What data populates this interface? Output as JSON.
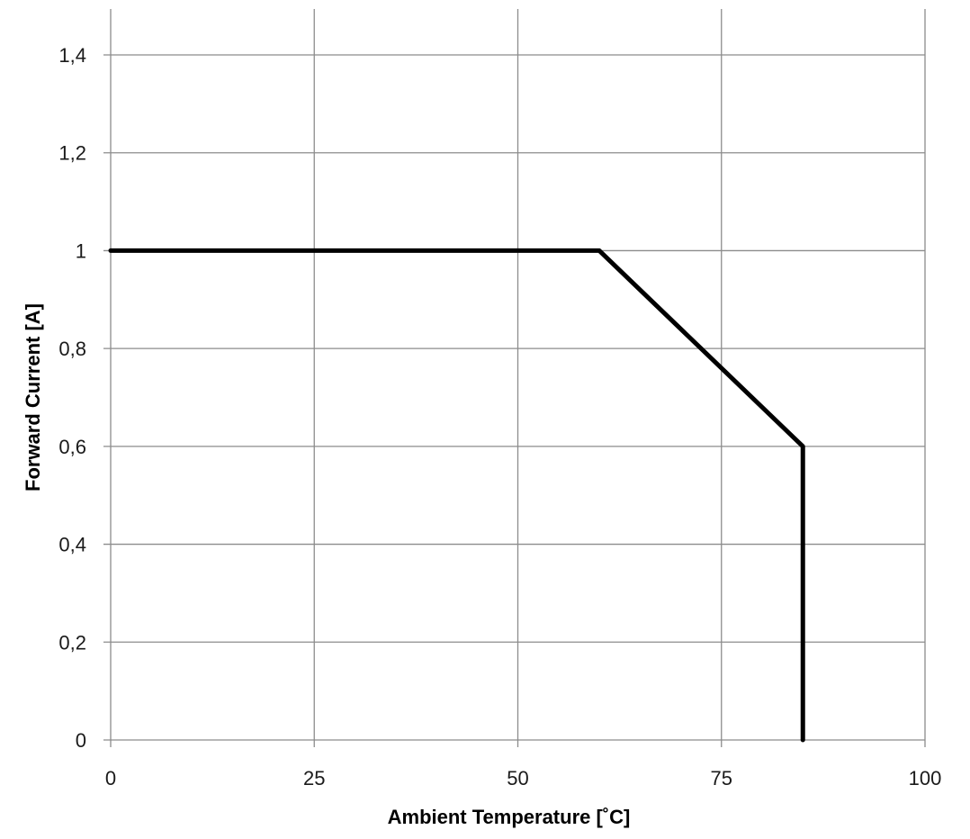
{
  "chart_data": {
    "type": "line",
    "title": "",
    "xlabel": "Ambient Temperature [˚C]",
    "ylabel": "Forward Current [A]",
    "xlim": [
      0,
      100
    ],
    "ylim": [
      0,
      1.5
    ],
    "x_ticks": [
      0,
      25,
      50,
      75,
      100
    ],
    "x_tick_labels": [
      "0",
      "25",
      "50",
      "75",
      "100"
    ],
    "y_ticks": [
      0,
      0.2,
      0.4,
      0.6,
      0.8,
      1.0,
      1.2,
      1.4
    ],
    "y_tick_labels": [
      "0",
      "0,2",
      "0,4",
      "0,6",
      "0,8",
      "1",
      "1,2",
      "1,4"
    ],
    "grid": true,
    "legend": "none",
    "series": [
      {
        "x": [
          0,
          60,
          85,
          85
        ],
        "y": [
          1.0,
          1.0,
          0.6,
          0.0
        ],
        "color": "#000000"
      }
    ],
    "colors": {
      "grid": "#8c8c8c",
      "line": "#000000",
      "text": "#1a1a1a"
    }
  }
}
